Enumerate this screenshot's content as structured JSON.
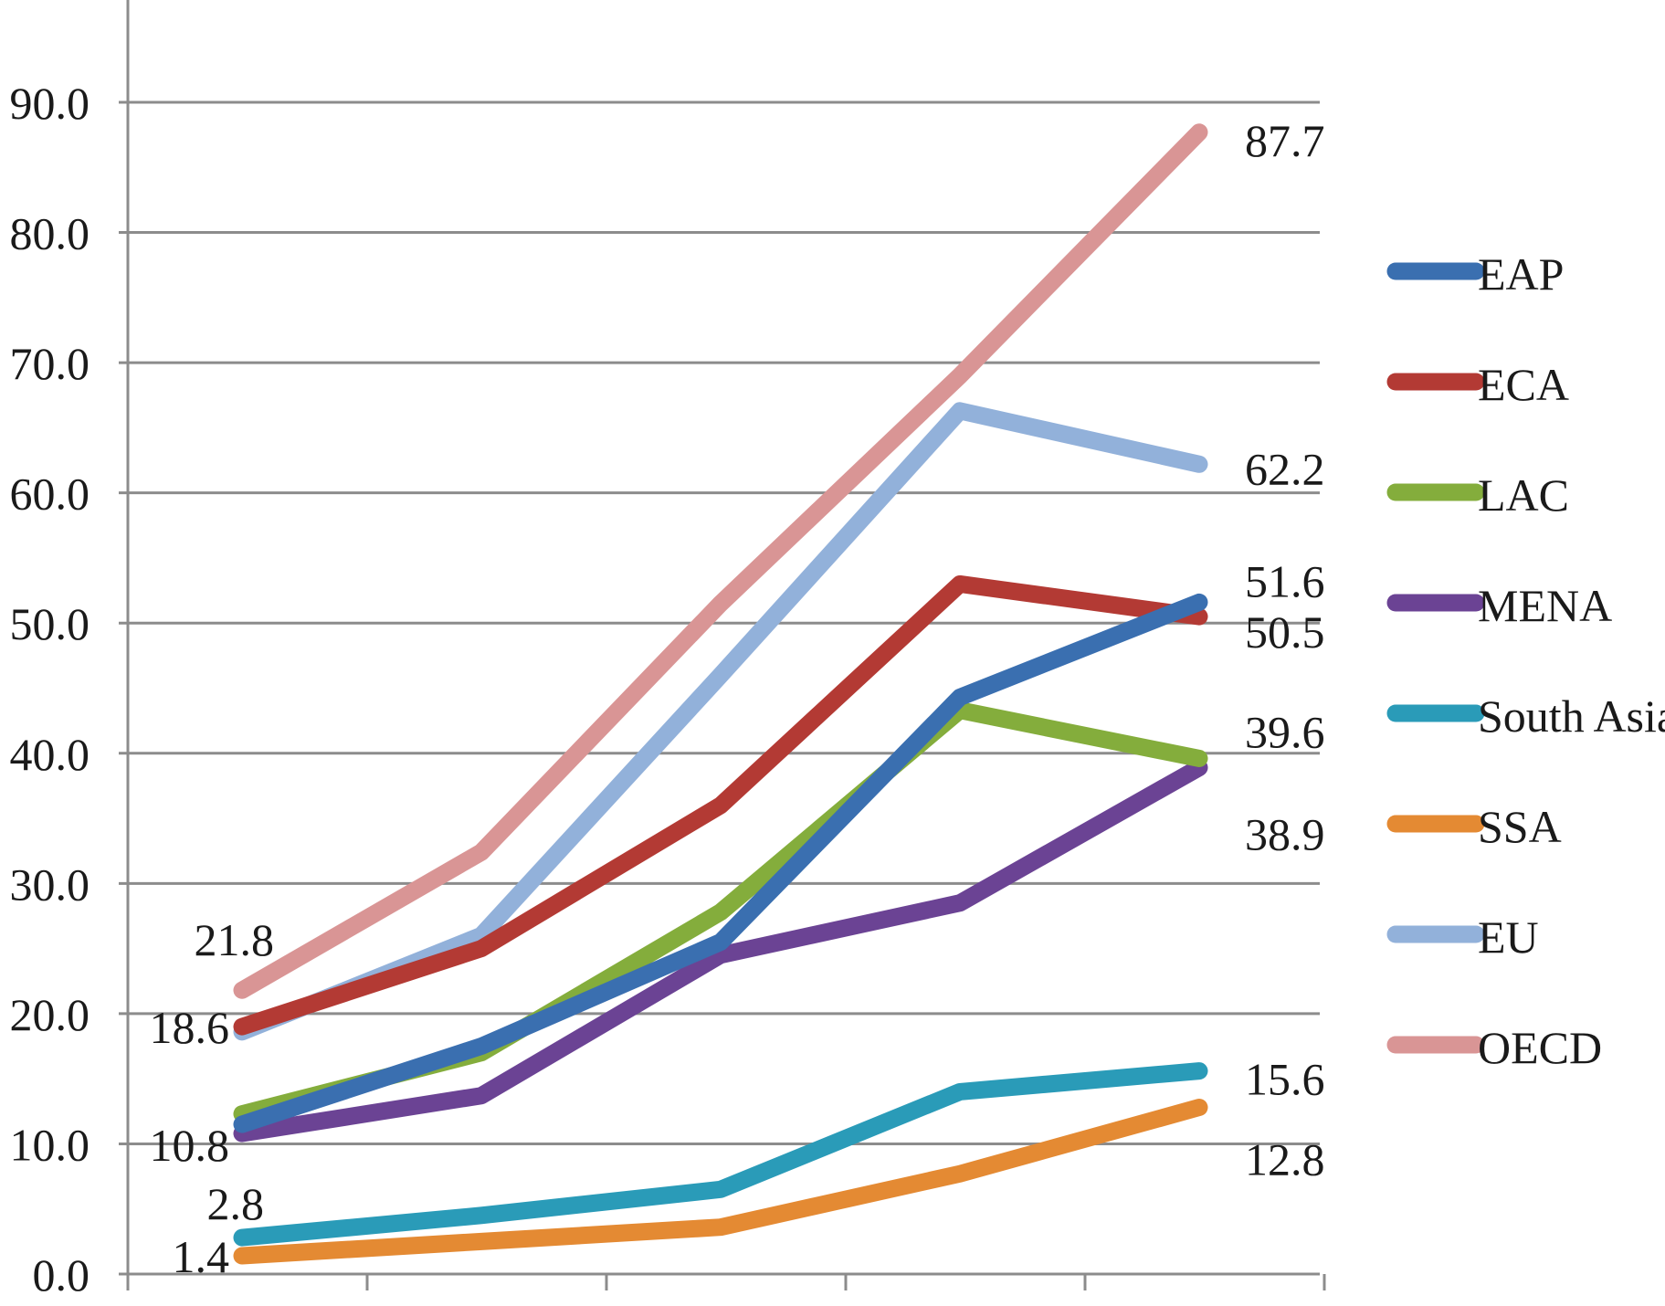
{
  "chart_data": {
    "type": "line",
    "title": "",
    "xlabel": "",
    "ylabel": "",
    "ylim": [
      0,
      90
    ],
    "y_ticks": [
      "0.0",
      "10.0",
      "20.0",
      "30.0",
      "40.0",
      "50.0",
      "60.0",
      "70.0",
      "80.0",
      "90.0"
    ],
    "x": [
      1,
      2,
      3,
      4,
      5
    ],
    "grid": "horizontal",
    "legend_position": "right",
    "series": [
      {
        "name": "EAP",
        "color": "#3a6fb0",
        "values": [
          11.5,
          17.5,
          25.5,
          44.3,
          51.6
        ],
        "labels": {
          "4": "51.6"
        }
      },
      {
        "name": "ECA",
        "color": "#b33a34",
        "values": [
          19.0,
          25.0,
          36.0,
          53.0,
          50.5
        ],
        "labels": {
          "4": "50.5"
        }
      },
      {
        "name": "LAC",
        "color": "#84ad3c",
        "values": [
          12.3,
          17.0,
          27.8,
          43.3,
          39.6
        ],
        "labels": {
          "4": "39.6"
        }
      },
      {
        "name": "MENA",
        "color": "#6b4394",
        "values": [
          10.8,
          13.7,
          24.5,
          28.5,
          38.9
        ],
        "labels": {
          "0": "10.8",
          "4": "38.9"
        }
      },
      {
        "name": "South Asia",
        "color": "#2a9bb8",
        "values": [
          2.8,
          4.5,
          6.5,
          14.0,
          15.6
        ],
        "labels": {
          "0": "2.8",
          "4": "15.6"
        }
      },
      {
        "name": "SSA",
        "color": "#e48a33",
        "values": [
          1.4,
          2.5,
          3.6,
          7.7,
          12.8
        ],
        "labels": {
          "0": "1.4",
          "4": "12.8"
        }
      },
      {
        "name": "EU",
        "color": "#92b1da",
        "values": [
          18.6,
          26.0,
          46.0,
          66.3,
          62.2
        ],
        "labels": {
          "0": "18.6",
          "4": "62.2"
        }
      },
      {
        "name": "OECD",
        "color": "#d99595",
        "values": [
          21.8,
          32.4,
          51.5,
          69.0,
          87.7
        ],
        "labels": {
          "0": "21.8",
          "4": "87.7"
        }
      }
    ]
  }
}
